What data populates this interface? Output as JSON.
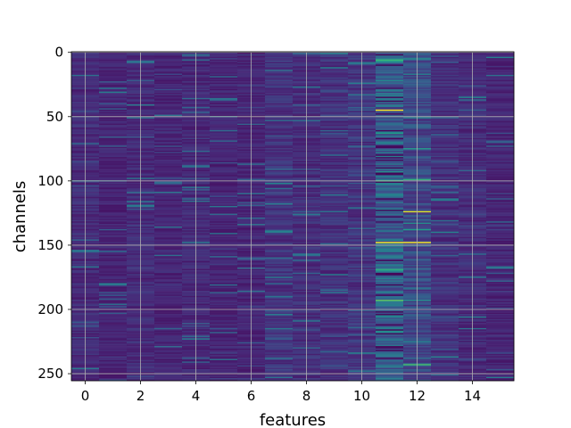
{
  "chart_data": {
    "type": "heatmap",
    "title": "",
    "xlabel": "features",
    "ylabel": "channels",
    "x_range": [
      -0.5,
      15.5
    ],
    "y_range": [
      -0.5,
      255.5
    ],
    "y_inverted": true,
    "x_ticks": [
      0,
      2,
      4,
      6,
      8,
      10,
      12,
      14
    ],
    "y_ticks": [
      0,
      50,
      100,
      150,
      200,
      250
    ],
    "x_tick_labels": [
      "0",
      "2",
      "4",
      "6",
      "8",
      "10",
      "12",
      "14"
    ],
    "y_tick_labels": [
      "0",
      "50",
      "100",
      "150",
      "200",
      "250"
    ],
    "grid": true,
    "colormap": "viridis",
    "value_range": [
      0,
      1
    ],
    "n_features": 16,
    "n_channels": 256,
    "column_mean_level": [
      0.12,
      0.1,
      0.12,
      0.1,
      0.11,
      0.1,
      0.1,
      0.15,
      0.13,
      0.14,
      0.15,
      0.3,
      0.22,
      0.14,
      0.12,
      0.1
    ],
    "notable_cells": [
      {
        "feature": 11,
        "channel": 45,
        "value": 1.0
      },
      {
        "feature": 11,
        "channel": 148,
        "value": 1.0
      },
      {
        "feature": 12,
        "channel": 148,
        "value": 1.0
      },
      {
        "feature": 12,
        "channel": 124,
        "value": 0.95
      },
      {
        "feature": 11,
        "channel": 193,
        "value": 0.75
      },
      {
        "feature": 12,
        "channel": 243,
        "value": 0.7
      },
      {
        "feature": 12,
        "channel": 99,
        "value": 0.65
      },
      {
        "feature": 11,
        "channel": 63,
        "value": 0.55
      },
      {
        "feature": 11,
        "channel": 93,
        "value": 0.5
      },
      {
        "feature": 11,
        "channel": 170,
        "value": 0.5
      },
      {
        "feature": 11,
        "channel": 205,
        "value": 0.45
      },
      {
        "feature": 12,
        "channel": 133,
        "value": 0.5
      },
      {
        "feature": 12,
        "channel": 193,
        "value": 0.5
      },
      {
        "feature": 13,
        "channel": 140,
        "value": 0.45
      },
      {
        "feature": 13,
        "channel": 237,
        "value": 0.45
      },
      {
        "feature": 10,
        "channel": 8,
        "value": 0.4
      },
      {
        "feature": 8,
        "channel": 27,
        "value": 0.4
      },
      {
        "feature": 4,
        "channel": 105,
        "value": 0.4
      },
      {
        "feature": 8,
        "channel": 126,
        "value": 0.4
      },
      {
        "feature": 10,
        "channel": 248,
        "value": 0.4
      },
      {
        "feature": 11,
        "channel": 28,
        "value": 0.05
      },
      {
        "feature": 11,
        "channel": 132,
        "value": 0.05
      },
      {
        "feature": 11,
        "channel": 230,
        "value": 0.05
      }
    ]
  }
}
